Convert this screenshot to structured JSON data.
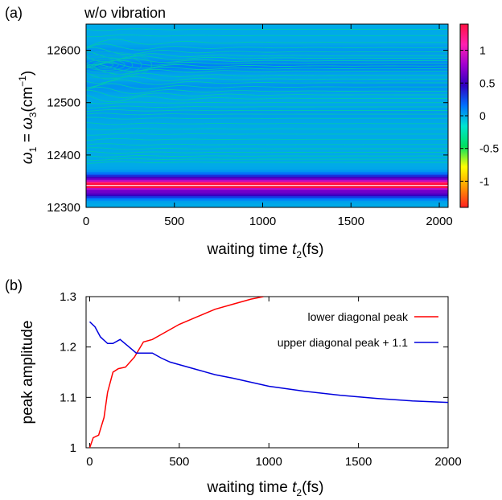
{
  "chart_data": [
    {
      "type": "heatmap",
      "panel_label": "(a)",
      "title": "w/o vibration",
      "xlabel": "waiting time",
      "xlabel_var": "t",
      "xlabel_sub": "2",
      "xlabel_unit": "(fs)",
      "ylabel_prefix": "ω",
      "ylabel_sub1": "1",
      "ylabel_mid": " = ω",
      "ylabel_sub2": "3",
      "ylabel_unit": "(cm",
      "ylabel_sup": "−1",
      "ylabel_close": ")",
      "xlim": [
        0,
        2050
      ],
      "ylim": [
        12300,
        12650
      ],
      "xticks": [
        0,
        500,
        1000,
        1500,
        2000
      ],
      "yticks": [
        12300,
        12400,
        12500,
        12600
      ],
      "colorbar": {
        "range": [
          -1.4,
          1.4
        ],
        "ticks": [
          1,
          0.5,
          0,
          -0.5,
          -1
        ],
        "tick_labels": [
          "1",
          "0.5",
          "0",
          "-0.5",
          "-1"
        ],
        "colors": [
          "#ff2020",
          "#ff9a00",
          "#ffff00",
          "#00e060",
          "#00e5d0",
          "#0070ff",
          "#3000c0",
          "#a000d0",
          "#ff20b0",
          "#ff1040"
        ]
      },
      "bands": [
        {
          "y": 12600,
          "value": 0.05,
          "width": 10
        },
        {
          "y": 12570,
          "value": 0.12,
          "width": 12
        },
        {
          "y": 12530,
          "value": 0.06,
          "width": 12
        },
        {
          "y": 12480,
          "value": 0.03,
          "width": 15
        },
        {
          "y": 12350,
          "value": 0.7,
          "width": 12
        },
        {
          "y": 12342,
          "value": 1.3,
          "width": 6
        },
        {
          "y": 12328,
          "value": 0.6,
          "width": 10
        }
      ]
    },
    {
      "type": "line",
      "panel_label": "(b)",
      "xlabel": "waiting time",
      "xlabel_var": "t",
      "xlabel_sub": "2",
      "xlabel_unit": "(fs)",
      "ylabel": "peak amplitude",
      "xlim": [
        -20,
        2000
      ],
      "ylim": [
        1.0,
        1.3
      ],
      "xticks": [
        0,
        500,
        1000,
        1500,
        2000
      ],
      "yticks": [
        1,
        1.1,
        1.2,
        1.3
      ],
      "series": [
        {
          "name": "lower diagonal peak",
          "color": "#ff0000",
          "x": [
            0,
            20,
            50,
            80,
            100,
            130,
            160,
            200,
            250,
            300,
            350,
            400,
            500,
            600,
            700,
            800,
            900,
            970
          ],
          "y": [
            1.0,
            1.02,
            1.025,
            1.06,
            1.11,
            1.15,
            1.157,
            1.16,
            1.18,
            1.21,
            1.215,
            1.225,
            1.245,
            1.26,
            1.275,
            1.285,
            1.295,
            1.3
          ]
        },
        {
          "name": "upper diagonal peak + 1.1",
          "color": "#0000dd",
          "x": [
            0,
            30,
            60,
            100,
            130,
            170,
            220,
            260,
            300,
            350,
            400,
            450,
            500,
            600,
            700,
            800,
            1000,
            1200,
            1400,
            1600,
            1800,
            2000
          ],
          "y": [
            1.25,
            1.24,
            1.22,
            1.207,
            1.207,
            1.215,
            1.2,
            1.188,
            1.188,
            1.188,
            1.178,
            1.17,
            1.165,
            1.155,
            1.145,
            1.138,
            1.122,
            1.112,
            1.104,
            1.098,
            1.093,
            1.09
          ]
        }
      ],
      "legend_position": "top-right"
    }
  ]
}
